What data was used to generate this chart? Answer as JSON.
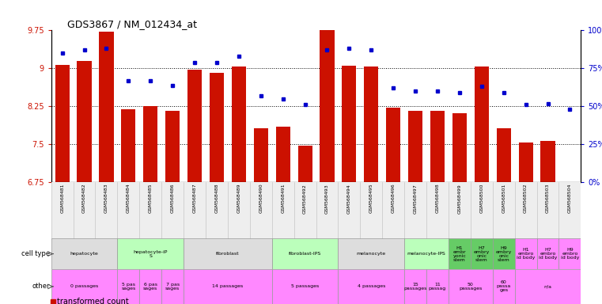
{
  "title": "GDS3867 / NM_012434_at",
  "samples": [
    "GSM568481",
    "GSM568482",
    "GSM568483",
    "GSM568484",
    "GSM568485",
    "GSM568486",
    "GSM568487",
    "GSM568488",
    "GSM568489",
    "GSM568490",
    "GSM568491",
    "GSM568492",
    "GSM568493",
    "GSM568494",
    "GSM568495",
    "GSM568496",
    "GSM568497",
    "GSM568498",
    "GSM568499",
    "GSM568500",
    "GSM568501",
    "GSM568502",
    "GSM568503",
    "GSM568504"
  ],
  "bar_values": [
    9.07,
    9.15,
    9.72,
    8.2,
    8.25,
    8.17,
    8.97,
    8.92,
    9.03,
    7.82,
    7.85,
    7.47,
    9.93,
    9.05,
    9.03,
    8.22,
    8.17,
    8.17,
    8.12,
    9.03,
    7.82,
    7.53,
    7.57,
    6.72
  ],
  "dot_values": [
    85,
    87,
    88,
    67,
    67,
    64,
    79,
    79,
    83,
    57,
    55,
    51,
    87,
    88,
    87,
    62,
    60,
    60,
    59,
    63,
    59,
    51,
    52,
    48
  ],
  "ylim": [
    6.75,
    9.75
  ],
  "yticks_left": [
    6.75,
    7.5,
    8.25,
    9.0,
    9.75
  ],
  "ytick_left_labels": [
    "6.75",
    "7.5",
    "8.25",
    "9",
    "9.75"
  ],
  "yticks_right": [
    0,
    25,
    50,
    75,
    100
  ],
  "ytick_right_labels": [
    "0%",
    "25%",
    "50%",
    "75%",
    "100%"
  ],
  "grid_lines": [
    7.5,
    8.25,
    9.0
  ],
  "bar_color": "#cc1100",
  "dot_color": "#0000cc",
  "cell_types": [
    {
      "label": "hepatocyte",
      "start": 0,
      "end": 2,
      "color": "#dddddd"
    },
    {
      "label": "hepatocyte-iP\nS",
      "start": 3,
      "end": 5,
      "color": "#bbffbb"
    },
    {
      "label": "fibroblast",
      "start": 6,
      "end": 9,
      "color": "#dddddd"
    },
    {
      "label": "fibroblast-IPS",
      "start": 10,
      "end": 12,
      "color": "#bbffbb"
    },
    {
      "label": "melanocyte",
      "start": 13,
      "end": 15,
      "color": "#dddddd"
    },
    {
      "label": "melanocyte-IPS",
      "start": 16,
      "end": 17,
      "color": "#bbffbb"
    },
    {
      "label": "H1\nembr\nyonic\nstem",
      "start": 18,
      "end": 18,
      "color": "#66cc66"
    },
    {
      "label": "H7\nembry\nonic\nstem",
      "start": 19,
      "end": 19,
      "color": "#66cc66"
    },
    {
      "label": "H9\nembry\nonic\nstem",
      "start": 20,
      "end": 20,
      "color": "#66cc66"
    },
    {
      "label": "H1\nembro\nid body",
      "start": 21,
      "end": 21,
      "color": "#ff88ff"
    },
    {
      "label": "H7\nembro\nid body",
      "start": 22,
      "end": 22,
      "color": "#ff88ff"
    },
    {
      "label": "H9\nembro\nid body",
      "start": 23,
      "end": 23,
      "color": "#ff88ff"
    }
  ],
  "others": [
    {
      "label": "0 passages",
      "start": 0,
      "end": 2,
      "color": "#ff88ff"
    },
    {
      "label": "5 pas\nsages",
      "start": 3,
      "end": 3,
      "color": "#ff88ff"
    },
    {
      "label": "6 pas\nsages",
      "start": 4,
      "end": 4,
      "color": "#ff88ff"
    },
    {
      "label": "7 pas\nsages",
      "start": 5,
      "end": 5,
      "color": "#ff88ff"
    },
    {
      "label": "14 passages",
      "start": 6,
      "end": 9,
      "color": "#ff88ff"
    },
    {
      "label": "5 passages",
      "start": 10,
      "end": 12,
      "color": "#ff88ff"
    },
    {
      "label": "4 passages",
      "start": 13,
      "end": 15,
      "color": "#ff88ff"
    },
    {
      "label": "15\npassages",
      "start": 16,
      "end": 16,
      "color": "#ff88ff"
    },
    {
      "label": "11\npassag",
      "start": 17,
      "end": 17,
      "color": "#ff88ff"
    },
    {
      "label": "50\npassages",
      "start": 18,
      "end": 19,
      "color": "#ff88ff"
    },
    {
      "label": "60\npassa\nges",
      "start": 20,
      "end": 20,
      "color": "#ff88ff"
    },
    {
      "label": "n/a",
      "start": 21,
      "end": 23,
      "color": "#ff88ff"
    }
  ]
}
